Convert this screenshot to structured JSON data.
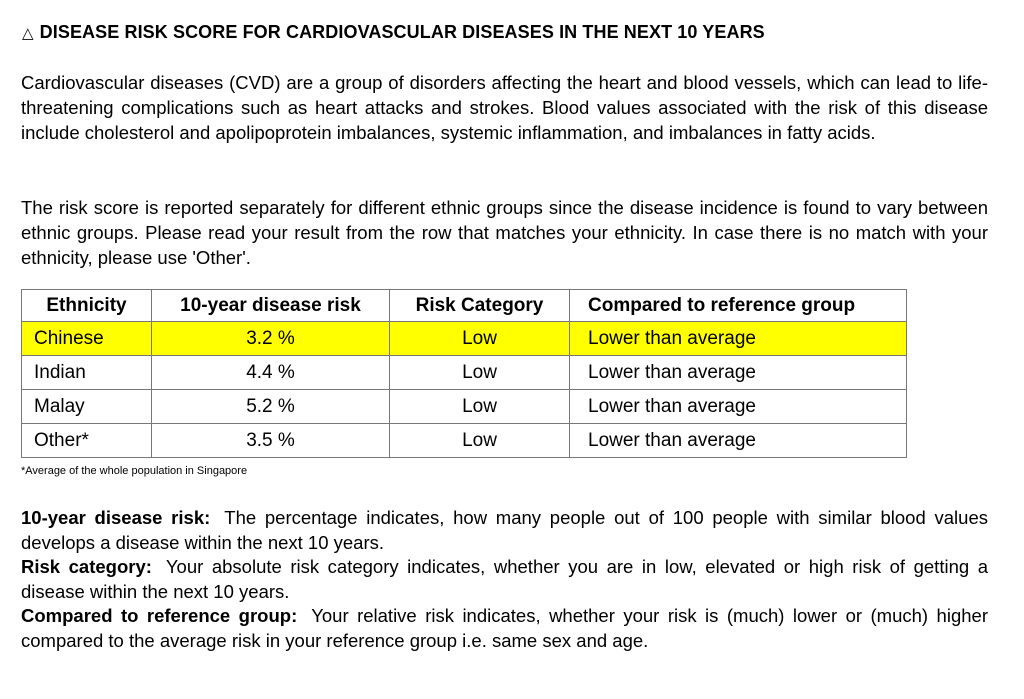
{
  "heading": {
    "icon": "warning-triangle-icon",
    "icon_glyph": "△",
    "title": "DISEASE RISK SCORE FOR CARDIOVASCULAR DISEASES IN THE NEXT 10 YEARS"
  },
  "intro": "Cardiovascular diseases (CVD) are a group of disorders affecting the heart and blood vessels, which can lead to life-threatening complications such as heart attacks and strokes.  Blood values associated with the risk of this disease include cholesterol and apolipoprotein imbalances, systemic inflammation, and imbalances in fatty acids.",
  "instructions": "The risk score is reported separately for different ethnic groups since the disease incidence is found to vary between ethnic groups.  Please read your result from the row that matches your ethnicity.  In case there is no match with your ethnicity, please use 'Other'.",
  "table": {
    "headers": {
      "ethnicity": "Ethnicity",
      "risk": "10-year disease risk",
      "category": "Risk Category",
      "compared": "Compared to reference group"
    },
    "highlight_color": "#ffff00",
    "rows": [
      {
        "ethnicity": "Chinese",
        "risk": "3.2 %",
        "category": "Low",
        "compared": "Lower than average",
        "highlighted": true
      },
      {
        "ethnicity": "Indian",
        "risk": "4.4 %",
        "category": "Low",
        "compared": "Lower than average",
        "highlighted": false
      },
      {
        "ethnicity": "Malay",
        "risk": "5.2 %",
        "category": "Low",
        "compared": "Lower than average",
        "highlighted": false
      },
      {
        "ethnicity": "Other*",
        "risk": "3.5 %",
        "category": "Low",
        "compared": "Lower than average",
        "highlighted": false
      }
    ]
  },
  "footnote": "*Average of the whole population in Singapore",
  "definitions": [
    {
      "term": "10-year disease risk:",
      "text": "The percentage indicates, how many people out of 100 people with similar blood values develops a disease within the next 10 years."
    },
    {
      "term": "Risk category:",
      "text": "Your absolute risk category indicates, whether you are in low, elevated or high risk of getting a disease within the next 10 years."
    },
    {
      "term": "Compared to reference group:",
      "text": "Your relative risk indicates, whether your risk is (much) lower or (much) higher compared to the average risk in your reference group i.e. same sex and age."
    }
  ]
}
